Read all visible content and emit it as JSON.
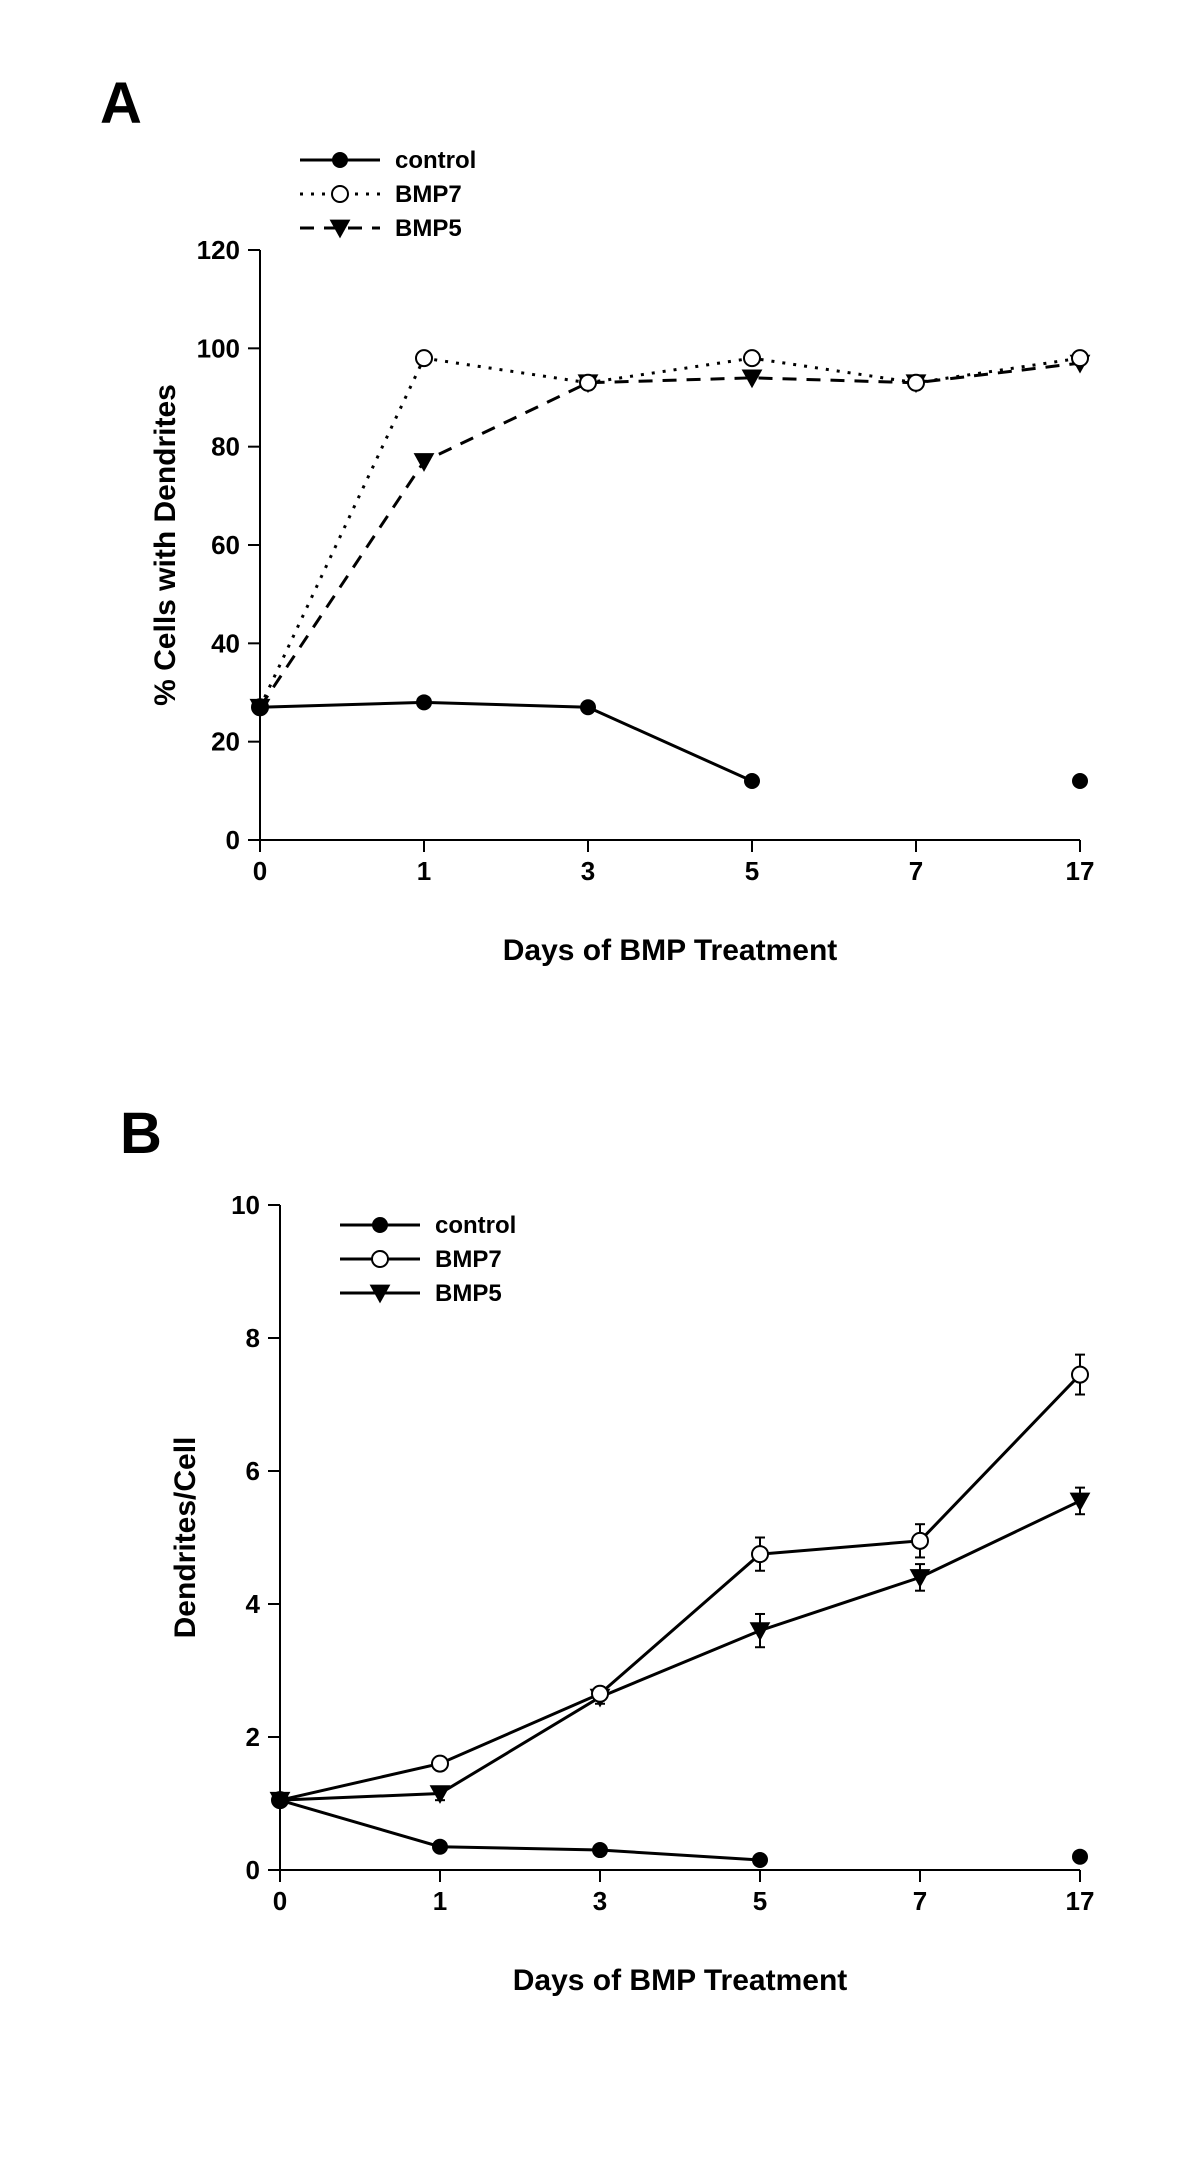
{
  "panelA": {
    "label": "A",
    "type": "line",
    "xlabel": "Days of BMP Treatment",
    "ylabel": "% Cells with Dendrites",
    "x_categories": [
      "0",
      "1",
      "3",
      "5",
      "7",
      "17"
    ],
    "ylim": [
      0,
      120
    ],
    "ytick_step": 20,
    "background_color": "#ffffff",
    "axis_color": "#000000",
    "label_fontsize": 30,
    "tick_fontsize": 26,
    "legend_fontsize": 24,
    "line_width": 3,
    "marker_size": 8,
    "legend": {
      "position": "top-left",
      "entries": [
        {
          "series": "control",
          "label": "control"
        },
        {
          "series": "bmp7",
          "label": "BMP7"
        },
        {
          "series": "bmp5",
          "label": "BMP5"
        }
      ]
    },
    "series": {
      "control": {
        "name": "control",
        "color": "#000000",
        "marker": "circle-filled",
        "line_style": "solid",
        "x_indices": [
          0,
          1,
          2,
          3,
          5
        ],
        "y": [
          27,
          28,
          27,
          12,
          12
        ],
        "break_after_index": 3
      },
      "bmp7": {
        "name": "BMP7",
        "color": "#000000",
        "marker": "circle-open",
        "line_style": "dotted",
        "x_indices": [
          0,
          1,
          2,
          3,
          4,
          5
        ],
        "y": [
          27,
          98,
          93,
          98,
          93,
          98
        ]
      },
      "bmp5": {
        "name": "BMP5",
        "color": "#000000",
        "marker": "triangle-down-filled",
        "line_style": "dashed",
        "x_indices": [
          0,
          1,
          2,
          3,
          4,
          5
        ],
        "y": [
          27,
          77,
          93,
          94,
          93,
          97
        ]
      }
    }
  },
  "panelB": {
    "label": "B",
    "type": "line-errorbar",
    "xlabel": "Days of BMP Treatment",
    "ylabel": "Dendrites/Cell",
    "x_categories": [
      "0",
      "1",
      "3",
      "5",
      "7",
      "17"
    ],
    "ylim": [
      0,
      10
    ],
    "ytick_step": 2,
    "background_color": "#ffffff",
    "axis_color": "#000000",
    "label_fontsize": 30,
    "tick_fontsize": 26,
    "legend_fontsize": 24,
    "line_width": 3,
    "marker_size": 8,
    "error_cap_width": 10,
    "legend": {
      "position": "inside-top-left",
      "entries": [
        {
          "series": "control",
          "label": "control"
        },
        {
          "series": "bmp7",
          "label": "BMP7"
        },
        {
          "series": "bmp5",
          "label": "BMP5"
        }
      ]
    },
    "series": {
      "control": {
        "name": "control",
        "color": "#000000",
        "marker": "circle-filled",
        "line_style": "solid",
        "x_indices": [
          0,
          1,
          2,
          3,
          5
        ],
        "y": [
          1.05,
          0.35,
          0.3,
          0.15,
          0.2
        ],
        "err": [
          0.05,
          0.05,
          0.05,
          0.05,
          0.05
        ],
        "break_after_index": 3
      },
      "bmp7": {
        "name": "BMP7",
        "color": "#000000",
        "marker": "circle-open",
        "line_style": "solid",
        "x_indices": [
          0,
          1,
          2,
          3,
          4,
          5
        ],
        "y": [
          1.05,
          1.6,
          2.65,
          4.75,
          4.95,
          7.45
        ],
        "err": [
          0.0,
          0.1,
          0.1,
          0.25,
          0.25,
          0.3
        ]
      },
      "bmp5": {
        "name": "BMP5",
        "color": "#000000",
        "marker": "triangle-down-filled",
        "line_style": "solid",
        "x_indices": [
          0,
          1,
          2,
          3,
          4,
          5
        ],
        "y": [
          1.05,
          1.15,
          2.6,
          3.6,
          4.4,
          5.55
        ],
        "err": [
          0.0,
          0.1,
          0.1,
          0.25,
          0.2,
          0.2
        ]
      }
    }
  }
}
